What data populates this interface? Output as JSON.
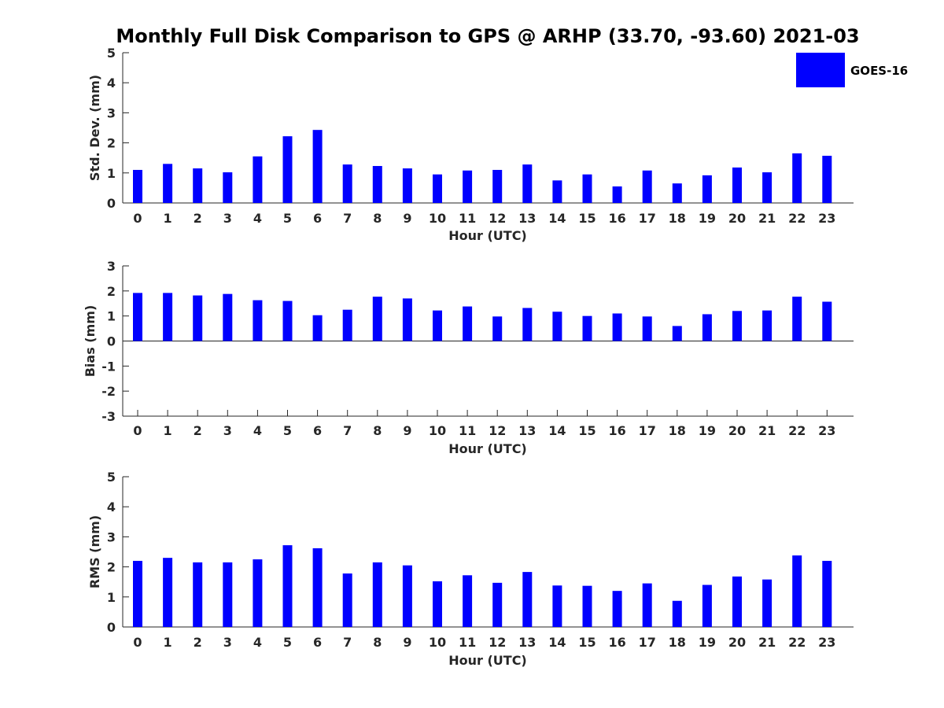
{
  "title": "Monthly Full Disk Comparison to GPS @ ARHP (33.70, -93.60) 2021-03",
  "legend": {
    "label": "GOES-16",
    "color": "#0000ff"
  },
  "chart_data": [
    {
      "type": "bar",
      "categories": [
        "0",
        "1",
        "2",
        "3",
        "4",
        "5",
        "6",
        "7",
        "8",
        "9",
        "10",
        "11",
        "12",
        "13",
        "14",
        "15",
        "16",
        "17",
        "18",
        "19",
        "20",
        "21",
        "22",
        "23"
      ],
      "series": [
        {
          "name": "GOES-16",
          "values": [
            1.1,
            1.3,
            1.15,
            1.02,
            1.55,
            2.22,
            2.43,
            1.28,
            1.23,
            1.15,
            0.95,
            1.08,
            1.1,
            1.28,
            0.75,
            0.95,
            0.55,
            1.08,
            0.65,
            0.92,
            1.18,
            1.02,
            1.65,
            1.57
          ]
        }
      ],
      "xlabel": "Hour (UTC)",
      "ylabel": "Std. Dev. (mm)",
      "ylim": [
        0,
        5
      ],
      "yticks": [
        "0",
        "1",
        "2",
        "3",
        "4",
        "5"
      ],
      "color": "#0000ff"
    },
    {
      "type": "bar",
      "categories": [
        "0",
        "1",
        "2",
        "3",
        "4",
        "5",
        "6",
        "7",
        "8",
        "9",
        "10",
        "11",
        "12",
        "13",
        "14",
        "15",
        "16",
        "17",
        "18",
        "19",
        "20",
        "21",
        "22",
        "23"
      ],
      "series": [
        {
          "name": "GOES-16",
          "values": [
            1.92,
            1.92,
            1.82,
            1.88,
            1.63,
            1.6,
            1.03,
            1.25,
            1.77,
            1.7,
            1.22,
            1.38,
            0.98,
            1.32,
            1.17,
            1.0,
            1.1,
            0.98,
            0.6,
            1.07,
            1.2,
            1.22,
            1.77,
            1.57
          ]
        }
      ],
      "xlabel": "Hour (UTC)",
      "ylabel": "Bias (mm)",
      "ylim": [
        -3,
        3
      ],
      "yticks": [
        "-3",
        "-2",
        "-1",
        "0",
        "1",
        "2",
        "3"
      ],
      "color": "#0000ff"
    },
    {
      "type": "bar",
      "categories": [
        "0",
        "1",
        "2",
        "3",
        "4",
        "5",
        "6",
        "7",
        "8",
        "9",
        "10",
        "11",
        "12",
        "13",
        "14",
        "15",
        "16",
        "17",
        "18",
        "19",
        "20",
        "21",
        "22",
        "23"
      ],
      "series": [
        {
          "name": "GOES-16",
          "values": [
            2.2,
            2.3,
            2.15,
            2.15,
            2.25,
            2.72,
            2.62,
            1.78,
            2.15,
            2.05,
            1.52,
            1.72,
            1.47,
            1.83,
            1.38,
            1.37,
            1.2,
            1.45,
            0.87,
            1.4,
            1.68,
            1.58,
            2.38,
            2.2
          ]
        }
      ],
      "xlabel": "Hour (UTC)",
      "ylabel": "RMS (mm)",
      "ylim": [
        0,
        5
      ],
      "yticks": [
        "0",
        "1",
        "2",
        "3",
        "4",
        "5"
      ],
      "color": "#0000ff"
    }
  ]
}
